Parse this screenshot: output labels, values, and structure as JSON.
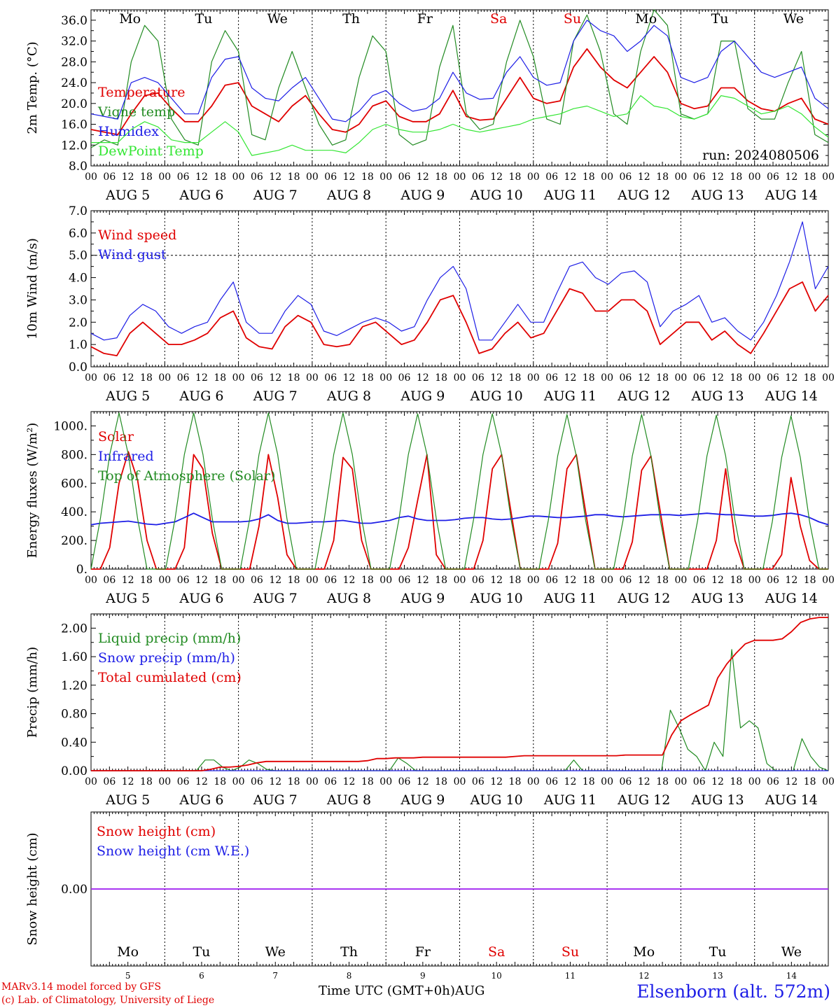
{
  "run_label": "run: 2024080506",
  "station": "Elsenborn (alt. 572m)",
  "credit_line1": "MARv3.14 model forced by GFS",
  "credit_line2": "(c) Lab. of Climatology, University of Liege",
  "time_axis_label": "Time UTC (GMT+0h)",
  "month_label": "AUG",
  "days": [
    "5",
    "6",
    "7",
    "8",
    "9",
    "10",
    "11",
    "12",
    "13",
    "14"
  ],
  "weekdays": [
    "Mo",
    "Tu",
    "We",
    "Th",
    "Fr",
    "Sa",
    "Su",
    "Mo",
    "Tu",
    "We"
  ],
  "weekend_days": [
    5,
    6
  ],
  "hour_ticks": [
    "00",
    "06",
    "12",
    "18"
  ],
  "hour_ticks_end": "00",
  "colors": {
    "red": "#e00000",
    "green": "#228b22",
    "blue": "#1e1ee6",
    "lightgreen": "#33e633",
    "purple": "#a020f0",
    "weekend": "#e00000"
  },
  "chart_data": [
    {
      "type": "line",
      "ylabel": "2m Temp. (°C)",
      "ylim": [
        8,
        38
      ],
      "yticks": [
        "8.0",
        "12.0",
        "16.0",
        "20.0",
        "24.0",
        "28.0",
        "32.0",
        "36.0"
      ],
      "ytick_values": [
        8,
        12,
        16,
        20,
        24,
        28,
        32,
        36
      ],
      "x_hours_step": 6,
      "series": [
        {
          "name": "Temperature",
          "color": "red",
          "values": [
            15,
            14.5,
            14,
            18,
            21.5,
            22,
            19,
            16.5,
            16.5,
            19.5,
            23.5,
            24,
            19.5,
            18,
            16.5,
            19.5,
            21.5,
            18,
            15,
            14.5,
            16,
            19.5,
            20.5,
            17.5,
            16.5,
            16.5,
            18,
            22.5,
            17.5,
            16.8,
            17,
            21,
            25,
            21,
            20,
            20.5,
            27,
            30.5,
            27,
            24.5,
            23,
            26,
            29,
            26,
            20,
            19,
            19.5,
            23,
            23,
            20.5,
            19,
            18.5,
            20,
            21,
            17,
            16
          ]
        },
        {
          "name": "Vigne temp",
          "color": "green",
          "values": [
            11.5,
            13,
            12,
            28,
            35,
            32,
            17,
            13,
            12,
            28,
            34,
            30,
            14,
            13,
            23,
            30,
            23,
            16,
            12,
            13,
            25,
            33,
            30,
            14,
            12,
            13,
            27,
            35,
            18,
            15,
            16,
            28,
            36,
            29,
            17,
            16,
            32,
            37,
            30,
            18,
            16,
            30,
            38,
            35,
            18,
            17,
            18,
            32,
            32,
            19,
            17,
            17,
            24,
            30,
            14,
            12.5
          ]
        },
        {
          "name": "Humidex",
          "color": "blue",
          "values": [
            18,
            17.5,
            17,
            24,
            25,
            24,
            21,
            18,
            18,
            25,
            28.5,
            29,
            23,
            21,
            20.5,
            23,
            25,
            21,
            17,
            16.5,
            18.5,
            21.5,
            22.5,
            20,
            18.5,
            19,
            21,
            26,
            22,
            20.8,
            21,
            26,
            29,
            25,
            23.5,
            24,
            32,
            36,
            34,
            33,
            30,
            32,
            35,
            33,
            25,
            24,
            25,
            30,
            32,
            29,
            26,
            25,
            26,
            27,
            21,
            19
          ]
        },
        {
          "name": "DewPoint Temp",
          "color": "lightgreen",
          "values": [
            12.5,
            12.5,
            12.5,
            15,
            16.5,
            15.5,
            13,
            12.5,
            12.5,
            14.5,
            16.5,
            14.5,
            10,
            10.5,
            11,
            12,
            11,
            11,
            11,
            10.5,
            12.5,
            15,
            16,
            15,
            14.5,
            14.5,
            15,
            16,
            15,
            14.5,
            15,
            15.5,
            16,
            17,
            17.5,
            18,
            19,
            19.5,
            18.5,
            17.5,
            18,
            21.5,
            19.5,
            19,
            17.5,
            17,
            18,
            21.5,
            21,
            19.5,
            18,
            18.5,
            19.5,
            18,
            15.5,
            13.5
          ]
        }
      ]
    },
    {
      "type": "line",
      "ylabel": "10m Wind (m/s)",
      "ylim": [
        0,
        7
      ],
      "yticks": [
        "0.0",
        "1.0",
        "2.0",
        "3.0",
        "4.0",
        "5.0",
        "6.0",
        "7.0"
      ],
      "ytick_values": [
        0,
        1,
        2,
        3,
        4,
        5,
        6,
        7
      ],
      "reference_line": 5,
      "x_hours_step": 6,
      "series": [
        {
          "name": "Wind speed",
          "color": "red",
          "values": [
            0.9,
            0.6,
            0.5,
            1.5,
            2,
            1.5,
            1,
            1,
            1.2,
            1.5,
            2.2,
            2.5,
            1.3,
            0.9,
            0.8,
            1.8,
            2.3,
            2,
            1,
            0.9,
            1,
            1.8,
            2,
            1.5,
            1,
            1.2,
            2,
            3,
            3.2,
            2,
            0.6,
            0.8,
            1.5,
            2,
            1.3,
            1.5,
            2.5,
            3.5,
            3.3,
            2.5,
            2.5,
            3,
            3,
            2.5,
            1,
            1.5,
            2,
            2,
            1.2,
            1.6,
            1,
            0.6,
            1.5,
            2.5,
            3.5,
            3.8,
            2.5,
            3.2
          ]
        },
        {
          "name": "Wind gust",
          "color": "blue",
          "values": [
            1.5,
            1.2,
            1.3,
            2.3,
            2.8,
            2.5,
            1.8,
            1.5,
            1.8,
            2,
            3,
            3.8,
            2,
            1.5,
            1.5,
            2.5,
            3.2,
            2.8,
            1.6,
            1.4,
            1.7,
            2,
            2.2,
            2,
            1.6,
            1.8,
            3,
            4,
            4.5,
            3.5,
            1.2,
            1.2,
            2,
            2.8,
            2,
            2,
            3.3,
            4.5,
            4.7,
            4,
            3.7,
            4.2,
            4.3,
            3.8,
            1.8,
            2.5,
            2.8,
            3.2,
            2,
            2.2,
            1.6,
            1.2,
            2,
            3.2,
            4.7,
            6.5,
            3.5,
            4.5
          ]
        }
      ]
    },
    {
      "type": "line",
      "ylabel": "Energy fluxes (W/m²)",
      "ylim": [
        0,
        1100
      ],
      "yticks": [
        "0.",
        "200.",
        "400.",
        "600.",
        "800.",
        "1000."
      ],
      "ytick_values": [
        0,
        200,
        400,
        600,
        800,
        1000
      ],
      "x_hours_step": 3,
      "series": [
        {
          "name": "Solar",
          "color": "red",
          "values": [
            0,
            0,
            150,
            600,
            820,
            620,
            200,
            0,
            0,
            0,
            150,
            800,
            700,
            250,
            0,
            0,
            0,
            0,
            300,
            800,
            500,
            100,
            0,
            0,
            0,
            0,
            200,
            780,
            700,
            200,
            0,
            0,
            0,
            0,
            150,
            480,
            800,
            100,
            0,
            0,
            0,
            0,
            200,
            700,
            800,
            400,
            0,
            0,
            0,
            0,
            180,
            700,
            800,
            400,
            0,
            0,
            0,
            0,
            190,
            690,
            790,
            400,
            0,
            0,
            0,
            0,
            0,
            200,
            700,
            200,
            0,
            0,
            0,
            0,
            100,
            640,
            300,
            60,
            0,
            0
          ]
        },
        {
          "name": "Infrared",
          "color": "blue",
          "values": [
            310,
            320,
            325,
            330,
            335,
            325,
            315,
            310,
            320,
            330,
            360,
            390,
            360,
            330,
            330,
            330,
            330,
            335,
            350,
            380,
            340,
            320,
            320,
            325,
            330,
            330,
            335,
            340,
            330,
            320,
            320,
            330,
            340,
            360,
            370,
            350,
            340,
            340,
            340,
            345,
            355,
            360,
            360,
            350,
            345,
            350,
            360,
            370,
            370,
            365,
            360,
            360,
            365,
            370,
            380,
            380,
            370,
            365,
            370,
            375,
            380,
            380,
            380,
            375,
            380,
            385,
            390,
            385,
            380,
            380,
            375,
            370,
            370,
            375,
            385,
            390,
            380,
            360,
            330,
            310
          ]
        },
        {
          "name": "Top of Atmosphere (Solar)",
          "color": "green",
          "values": [
            0,
            350,
            800,
            1090,
            800,
            350,
            0,
            0,
            0,
            350,
            800,
            1090,
            800,
            350,
            0,
            0,
            0,
            350,
            800,
            1090,
            800,
            350,
            0,
            0,
            0,
            350,
            800,
            1090,
            800,
            350,
            0,
            0,
            0,
            350,
            800,
            1085,
            800,
            350,
            0,
            0,
            0,
            350,
            800,
            1085,
            800,
            350,
            0,
            0,
            0,
            340,
            790,
            1080,
            790,
            340,
            0,
            0,
            0,
            340,
            790,
            1080,
            790,
            340,
            0,
            0,
            0,
            340,
            790,
            1075,
            790,
            340,
            0,
            0,
            0,
            330,
            780,
            1070,
            780,
            330,
            0,
            0
          ]
        }
      ]
    },
    {
      "type": "line",
      "ylabel": "Precip (mm/h)",
      "ylim": [
        0,
        2.2
      ],
      "yticks": [
        "0.00",
        "0.40",
        "0.80",
        "1.20",
        "1.60",
        "2.00"
      ],
      "ytick_values": [
        0,
        0.4,
        0.8,
        1.2,
        1.6,
        2.0
      ],
      "x_hours_step": 3,
      "series": [
        {
          "name": "Liquid precip (mm/h)",
          "color": "green",
          "values": [
            0,
            0,
            0,
            0,
            0,
            0,
            0,
            0,
            0,
            0,
            0,
            0,
            0,
            0.15,
            0.15,
            0.05,
            0,
            0.05,
            0.15,
            0.1,
            0.02,
            0,
            0,
            0,
            0,
            0,
            0,
            0,
            0,
            0,
            0,
            0,
            0,
            0,
            0,
            0.18,
            0.1,
            0,
            0,
            0,
            0,
            0,
            0,
            0,
            0,
            0,
            0,
            0,
            0,
            0,
            0,
            0,
            0,
            0,
            0,
            0.15,
            0,
            0,
            0,
            0,
            0,
            0,
            0,
            0,
            0,
            0,
            0.85,
            0.6,
            0.3,
            0.2,
            0,
            0.4,
            0.2,
            1.7,
            0.6,
            0.7,
            0.6,
            0.1,
            0,
            0,
            0,
            0.45,
            0.2,
            0.05,
            0
          ]
        },
        {
          "name": "Snow precip (mm/h)",
          "color": "blue",
          "values": [
            0,
            0,
            0,
            0,
            0,
            0,
            0,
            0,
            0,
            0,
            0,
            0,
            0,
            0,
            0,
            0,
            0,
            0,
            0,
            0,
            0,
            0,
            0,
            0,
            0,
            0,
            0,
            0,
            0,
            0,
            0,
            0,
            0,
            0,
            0,
            0,
            0,
            0,
            0,
            0,
            0,
            0,
            0,
            0,
            0,
            0,
            0,
            0,
            0,
            0,
            0,
            0,
            0,
            0,
            0,
            0,
            0,
            0,
            0,
            0,
            0,
            0,
            0,
            0,
            0,
            0,
            0,
            0,
            0,
            0,
            0,
            0,
            0,
            0,
            0,
            0,
            0,
            0,
            0,
            0,
            0,
            0
          ]
        },
        {
          "name": "Total cumulated (cm)",
          "color": "red",
          "values": [
            0,
            0,
            0,
            0,
            0,
            0,
            0,
            0,
            0,
            0,
            0,
            0,
            0,
            0.02,
            0.05,
            0.05,
            0.06,
            0.08,
            0.11,
            0.13,
            0.13,
            0.13,
            0.13,
            0.13,
            0.13,
            0.13,
            0.13,
            0.13,
            0.13,
            0.13,
            0.14,
            0.17,
            0.17,
            0.18,
            0.18,
            0.18,
            0.19,
            0.19,
            0.19,
            0.19,
            0.19,
            0.19,
            0.19,
            0.19,
            0.19,
            0.19,
            0.2,
            0.21,
            0.21,
            0.21,
            0.21,
            0.21,
            0.21,
            0.21,
            0.21,
            0.21,
            0.21,
            0.21,
            0.22,
            0.22,
            0.22,
            0.22,
            0.22,
            0.5,
            0.7,
            0.78,
            0.85,
            0.92,
            1.3,
            1.5,
            1.65,
            1.78,
            1.83,
            1.83,
            1.83,
            1.85,
            1.95,
            2.08,
            2.13,
            2.15,
            2.15
          ]
        }
      ]
    },
    {
      "type": "line",
      "ylabel": "Snow height (cm)",
      "ylim": [
        -1,
        1
      ],
      "yticks": [
        "0.00"
      ],
      "ytick_values": [
        0
      ],
      "x_hours_step": 6,
      "series": [
        {
          "name": "Snow height (cm)",
          "color": "red",
          "values": [
            0,
            0
          ]
        },
        {
          "name": "Snow height (cm W.E.)",
          "color": "blue",
          "values": [
            0,
            0
          ]
        }
      ]
    }
  ]
}
